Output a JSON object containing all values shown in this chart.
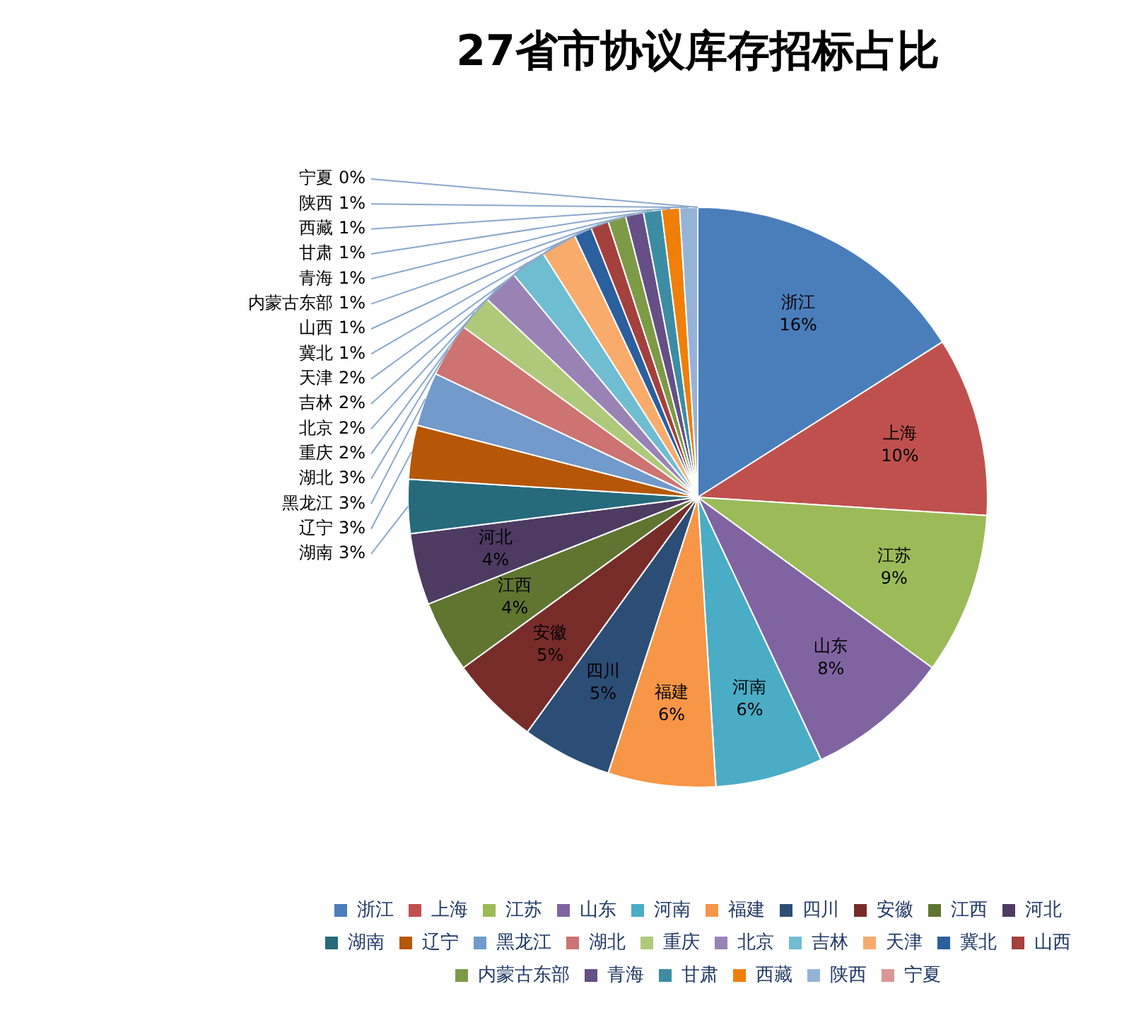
{
  "chart_data": {
    "type": "pie",
    "title": "27省市协议库存招标占比",
    "categories": [
      "浙江",
      "上海",
      "江苏",
      "山东",
      "河南",
      "福建",
      "四川",
      "安徽",
      "江西",
      "河北",
      "湖南",
      "辽宁",
      "黑龙江",
      "湖北",
      "重庆",
      "北京",
      "吉林",
      "天津",
      "冀北",
      "山西",
      "内蒙古东部",
      "青海",
      "甘肃",
      "西藏",
      "陕西",
      "宁夏"
    ],
    "values": [
      16,
      10,
      9,
      8,
      6,
      6,
      5,
      5,
      4,
      4,
      3,
      3,
      3,
      3,
      2,
      2,
      2,
      2,
      1,
      1,
      1,
      1,
      1,
      1,
      1,
      0
    ],
    "value_labels": [
      "16%",
      "10%",
      "9%",
      "8%",
      "6%",
      "6%",
      "5%",
      "5%",
      "4%",
      "4%",
      "3%",
      "3%",
      "3%",
      "3%",
      "2%",
      "2%",
      "2%",
      "2%",
      "1%",
      "1%",
      "1%",
      "1%",
      "1%",
      "1%",
      "1%",
      "0%"
    ],
    "colors": [
      "#4a7ebb",
      "#c0504d",
      "#9bbb59",
      "#8064a2",
      "#4bacc6",
      "#f79646",
      "#2c4d75",
      "#772c2a",
      "#5f7530",
      "#4d3b62",
      "#276a7c",
      "#b65708",
      "#729aca",
      "#cd7371",
      "#afc97a",
      "#9983b5",
      "#6fbdd1",
      "#f9ab6b",
      "#2c5f9e",
      "#a4403d",
      "#7d9a47",
      "#664f86",
      "#3c8da3",
      "#f07f09",
      "#95b3d7",
      "#d99694"
    ],
    "legend": "bottom"
  }
}
